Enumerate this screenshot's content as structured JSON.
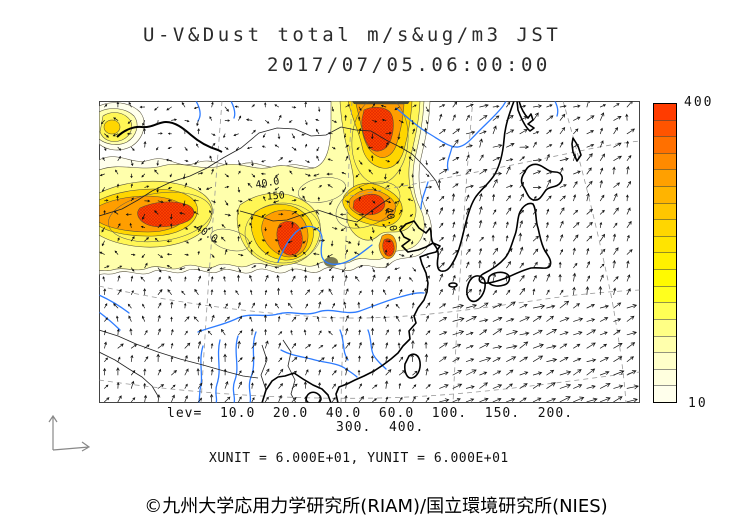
{
  "title": {
    "line1": "U-V&Dust total m/s&ug/m3 JST",
    "line2": "2017/07/05.06:00:00"
  },
  "legend": {
    "lev_line1": "lev=  10.0  20.0  40.0  60.0  100.  150.  200.",
    "lev_line2": "300.  400.",
    "units_line": "XUNIT = 6.000E+01, YUNIT = 6.000E+01"
  },
  "colorbar": {
    "top_label": "400",
    "bottom_label": "10",
    "cells": [
      "#FF3C00",
      "#FF5400",
      "#FF7000",
      "#FF8A00",
      "#FFA000",
      "#FFB400",
      "#FFC600",
      "#FFD600",
      "#FFE400",
      "#FFF000",
      "#FFFA00",
      "#FFFF1E",
      "#FFFF55",
      "#FFFF85",
      "#FFFFAC",
      "#FFFFC9",
      "#FFFFDE",
      "#FFFFEC"
    ]
  },
  "map": {
    "contour_labels": [
      {
        "text": "40.0"
      },
      {
        "text": "150"
      },
      {
        "text": "40.0"
      },
      {
        "text": "40.0"
      }
    ]
  },
  "footer": {
    "credit": "©九州大学応用力学研究所(RIAM)/国立環境研究所(NIES)"
  },
  "chart_data": {
    "type": "heatmap",
    "title": "U-V&Dust total m/s&ug/m3 JST",
    "time_label": "2017/07/05.06:00:00",
    "shaded_variable": "Dust total (ug/m3)",
    "vector_variable": "U-V wind (m/s)",
    "contour_levels": [
      10.0,
      20.0,
      40.0,
      60.0,
      100.0,
      150.0,
      200.0,
      300.0,
      400.0
    ],
    "colorbar_range": [
      10,
      400
    ],
    "colorbar_orientation": "vertical-right",
    "vector_unit_scale": {
      "XUNIT": "6.000E+01",
      "YUNIT": "6.000E+01"
    },
    "visible_contour_labels": [
      "40.0",
      "150",
      "40.0",
      "40.0"
    ],
    "map_region": "East Asia (China, Mongolia, Korea, Japan)",
    "dust_maxima_regions": [
      "northwest China band",
      "central China core",
      "Mongolia/NE-China vertical plume"
    ]
  }
}
